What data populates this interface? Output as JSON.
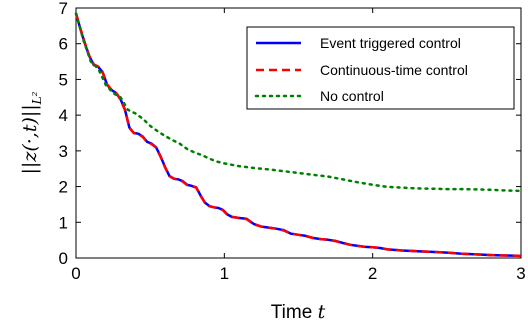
{
  "chart_data": {
    "type": "line",
    "title": "",
    "xlabel_prefix": "Time ",
    "xlabel_var": "t",
    "ylabel": "||z(·,t)||",
    "ylabel_sub": "L²",
    "xlim": [
      0,
      3
    ],
    "ylim": [
      0,
      7
    ],
    "xticks": [
      0,
      1,
      2,
      3
    ],
    "yticks": [
      0,
      1,
      2,
      3,
      4,
      5,
      6,
      7
    ],
    "grid": false,
    "legend_position": "top-right",
    "series": [
      {
        "name": "Event triggered control",
        "color": "#0000ff",
        "style": "solid",
        "x": [
          0,
          0.03,
          0.06,
          0.09,
          0.12,
          0.15,
          0.18,
          0.21,
          0.24,
          0.27,
          0.3,
          0.33,
          0.36,
          0.39,
          0.42,
          0.45,
          0.48,
          0.51,
          0.54,
          0.57,
          0.6,
          0.63,
          0.66,
          0.69,
          0.72,
          0.75,
          0.78,
          0.81,
          0.84,
          0.87,
          0.9,
          0.93,
          0.96,
          0.99,
          1.02,
          1.05,
          1.1,
          1.15,
          1.2,
          1.25,
          1.3,
          1.35,
          1.4,
          1.45,
          1.5,
          1.55,
          1.6,
          1.65,
          1.7,
          1.75,
          1.8,
          1.85,
          1.9,
          1.95,
          2.0,
          2.05,
          2.1,
          2.2,
          2.3,
          2.4,
          2.5,
          2.6,
          2.7,
          2.8,
          2.9,
          3.0
        ],
        "y": [
          6.85,
          6.4,
          6.0,
          5.65,
          5.4,
          5.35,
          5.2,
          4.85,
          4.7,
          4.62,
          4.45,
          4.15,
          3.65,
          3.5,
          3.48,
          3.4,
          3.25,
          3.2,
          3.1,
          2.85,
          2.55,
          2.3,
          2.22,
          2.2,
          2.15,
          2.05,
          2.02,
          1.98,
          1.75,
          1.55,
          1.45,
          1.42,
          1.4,
          1.35,
          1.22,
          1.15,
          1.12,
          1.1,
          0.95,
          0.88,
          0.85,
          0.82,
          0.78,
          0.68,
          0.65,
          0.62,
          0.56,
          0.53,
          0.51,
          0.48,
          0.42,
          0.37,
          0.34,
          0.31,
          0.3,
          0.28,
          0.24,
          0.21,
          0.19,
          0.17,
          0.15,
          0.12,
          0.1,
          0.08,
          0.07,
          0.06
        ]
      },
      {
        "name": "Continuous-time control",
        "color": "#ff0000",
        "style": "dashed",
        "x": [
          0,
          0.03,
          0.06,
          0.09,
          0.12,
          0.15,
          0.18,
          0.21,
          0.24,
          0.27,
          0.3,
          0.33,
          0.36,
          0.39,
          0.42,
          0.45,
          0.48,
          0.51,
          0.54,
          0.57,
          0.6,
          0.63,
          0.66,
          0.69,
          0.72,
          0.75,
          0.78,
          0.81,
          0.84,
          0.87,
          0.9,
          0.93,
          0.96,
          0.99,
          1.02,
          1.05,
          1.1,
          1.15,
          1.2,
          1.25,
          1.3,
          1.35,
          1.4,
          1.45,
          1.5,
          1.55,
          1.6,
          1.65,
          1.7,
          1.75,
          1.8,
          1.85,
          1.9,
          1.95,
          2.0,
          2.05,
          2.1,
          2.2,
          2.3,
          2.4,
          2.5,
          2.6,
          2.7,
          2.8,
          2.9,
          3.0
        ],
        "y": [
          6.85,
          6.42,
          6.02,
          5.66,
          5.42,
          5.36,
          5.2,
          4.86,
          4.71,
          4.62,
          4.44,
          4.14,
          3.64,
          3.5,
          3.47,
          3.39,
          3.24,
          3.19,
          3.09,
          2.84,
          2.54,
          2.29,
          2.22,
          2.19,
          2.14,
          2.04,
          2.01,
          1.97,
          1.74,
          1.54,
          1.45,
          1.42,
          1.39,
          1.34,
          1.21,
          1.15,
          1.12,
          1.09,
          0.94,
          0.88,
          0.85,
          0.82,
          0.77,
          0.68,
          0.65,
          0.61,
          0.56,
          0.53,
          0.51,
          0.47,
          0.42,
          0.37,
          0.34,
          0.31,
          0.3,
          0.28,
          0.24,
          0.21,
          0.19,
          0.17,
          0.15,
          0.12,
          0.1,
          0.08,
          0.07,
          0.06
        ]
      },
      {
        "name": "No control",
        "color": "#008000",
        "style": "dotted",
        "x": [
          0,
          0.05,
          0.1,
          0.15,
          0.2,
          0.25,
          0.3,
          0.35,
          0.4,
          0.45,
          0.5,
          0.55,
          0.6,
          0.65,
          0.7,
          0.75,
          0.8,
          0.85,
          0.9,
          0.95,
          1.0,
          1.1,
          1.2,
          1.3,
          1.4,
          1.5,
          1.6,
          1.7,
          1.8,
          1.9,
          2.0,
          2.1,
          2.2,
          2.3,
          2.4,
          2.5,
          2.6,
          2.7,
          2.8,
          2.9,
          3.0
        ],
        "y": [
          6.85,
          6.1,
          5.5,
          5.3,
          4.85,
          4.62,
          4.5,
          4.15,
          4.05,
          3.9,
          3.7,
          3.55,
          3.42,
          3.3,
          3.2,
          3.05,
          2.95,
          2.88,
          2.78,
          2.7,
          2.65,
          2.57,
          2.52,
          2.48,
          2.43,
          2.38,
          2.33,
          2.28,
          2.2,
          2.12,
          2.05,
          1.99,
          1.97,
          1.95,
          1.94,
          1.93,
          1.93,
          1.92,
          1.91,
          1.89,
          1.88
        ]
      }
    ]
  }
}
